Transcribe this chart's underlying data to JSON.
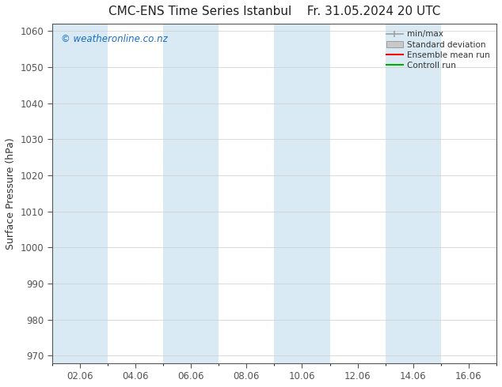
{
  "title_left": "CMC-ENS Time Series Istanbul",
  "title_right": "Fr. 31.05.2024 20 UTC",
  "ylabel": "Surface Pressure (hPa)",
  "ylim": [
    968,
    1062
  ],
  "yticks": [
    970,
    980,
    990,
    1000,
    1010,
    1020,
    1030,
    1040,
    1050,
    1060
  ],
  "xlim_start": "2024-06-01",
  "xlim_end": "2024-06-17",
  "xtick_labels": [
    "02.06",
    "04.06",
    "06.06",
    "08.06",
    "10.06",
    "12.06",
    "14.06",
    "16.06"
  ],
  "xtick_positions": [
    2,
    4,
    6,
    8,
    10,
    12,
    14,
    16
  ],
  "stripe_positions": [
    1,
    5,
    9,
    13,
    17
  ],
  "stripe_color": "#daeaf5",
  "watermark": "© weatheronline.co.nz",
  "watermark_color": "#1a6ec7",
  "legend_labels": [
    "min/max",
    "Standard deviation",
    "Ensemble mean run",
    "Controll run"
  ],
  "legend_colors": [
    "#a0a0a0",
    "#c8c8c8",
    "#ff0000",
    "#00aa00"
  ],
  "bg_color": "#ffffff",
  "axis_color": "#555555",
  "tick_color": "#555555",
  "title_fontsize": 11,
  "label_fontsize": 9,
  "tick_fontsize": 8.5
}
